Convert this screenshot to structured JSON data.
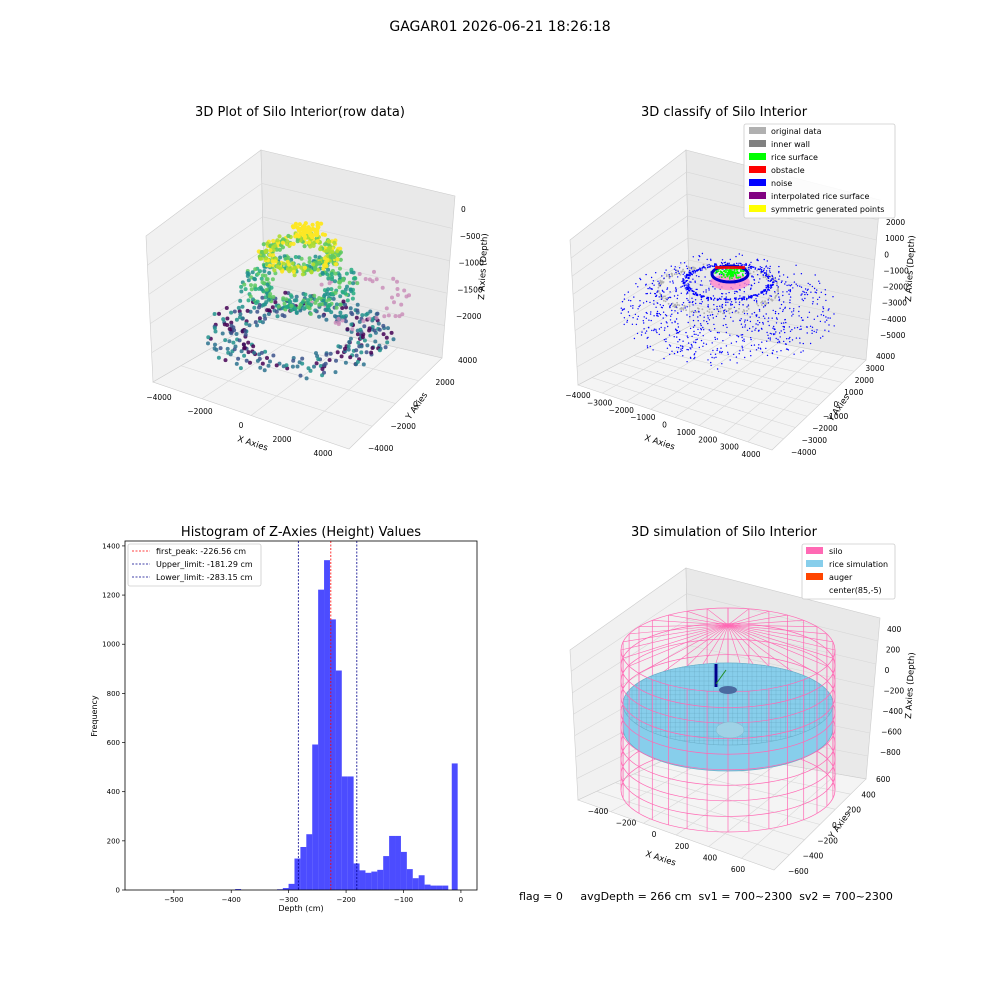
{
  "figure": {
    "suptitle": "GAGAR01 2026-06-21 18:26:18",
    "status_line": "flag = 0     avgDepth = 266 cm  sv1 = 700~2300  sv2 = 700~2300"
  },
  "colors": {
    "hist_bar": "#0000ff",
    "first_peak": "#ff0000",
    "limit_line": "#00008b",
    "silo": "#ff69b4",
    "rice": "#87ceeb",
    "auger": "#ff4500",
    "noise": "#0000ff",
    "rice_surface": "#00ff00",
    "original": "#b0b0b0",
    "inner_wall": "#808080",
    "obstacle": "#ff0000",
    "interpolated": "#800080",
    "symmetric": "#ffff00"
  },
  "chart_data": [
    {
      "type": "scatter",
      "subtype": "3d",
      "title": "3D Plot of Silo Interior(row data)",
      "xlabel": "X Axies",
      "ylabel": "Y Axies",
      "zlabel": "Z Axies (Depth)",
      "x_ticks": [
        "−4000",
        "−2000",
        "0",
        "2000",
        "4000"
      ],
      "y_ticks": [
        "−4000",
        "−2000",
        "0",
        "2000",
        "4000"
      ],
      "z_ticks": [
        "0",
        "−500",
        "−1000",
        "−1500",
        "−2000"
      ],
      "xlim": [
        -4500,
        4500
      ],
      "ylim": [
        -4500,
        4500
      ],
      "zlim": [
        -2400,
        100
      ],
      "colormap": "viridis",
      "grid": true
    },
    {
      "type": "scatter",
      "subtype": "3d",
      "title": "3D classify of Silo Interior",
      "xlabel": "X Axies",
      "ylabel": "Y Axies",
      "zlabel": "Z Axies (Depth)",
      "x_ticks": [
        "−4000",
        "−3000",
        "−2000",
        "−1000",
        "0",
        "1000",
        "2000",
        "3000",
        "4000"
      ],
      "y_ticks": [
        "−4000",
        "−3000",
        "−2000",
        "−1000",
        "0",
        "1000",
        "2000",
        "3000",
        "4000"
      ],
      "z_ticks": [
        "2000",
        "1000",
        "0",
        "−1000",
        "−2000",
        "−3000",
        "−4000",
        "−5000"
      ],
      "xlim": [
        -4000,
        4000
      ],
      "ylim": [
        -4000,
        4000
      ],
      "zlim": [
        -5500,
        2500
      ],
      "legend": {
        "placement": "top-right",
        "entries": [
          {
            "label": "original data",
            "color": "#b0b0b0"
          },
          {
            "label": "inner wall",
            "color": "#808080"
          },
          {
            "label": "rice surface",
            "color": "#00ff00"
          },
          {
            "label": "obstacle",
            "color": "#ff0000"
          },
          {
            "label": "noise",
            "color": "#0000ff"
          },
          {
            "label": "interpolated rice surface",
            "color": "#800080"
          },
          {
            "label": "symmetric generated points",
            "color": "#ffff00"
          }
        ]
      },
      "grid": true
    },
    {
      "type": "bar",
      "subtype": "histogram",
      "title": "Histogram of Z-Axies (Height) Values",
      "xlabel": "Depth (cm)",
      "ylabel": "Frequency",
      "xlim": [
        -585,
        28
      ],
      "ylim": [
        0,
        1420
      ],
      "x_ticks": [
        -500,
        -400,
        -300,
        -200,
        -100,
        0
      ],
      "x_tick_labels": [
        "−500",
        "−400",
        "−300",
        "−200",
        "−100",
        "0"
      ],
      "y_ticks": [
        0,
        200,
        400,
        600,
        800,
        1000,
        1200,
        1400
      ],
      "y_tick_labels": [
        "0",
        "200",
        "400",
        "600",
        "800",
        "1000",
        "1200",
        "1400"
      ],
      "bin_width": 10.3,
      "bins": [
        {
          "x": -388,
          "value": 4
        },
        {
          "x": -315,
          "value": 3
        },
        {
          "x": -305,
          "value": 8
        },
        {
          "x": -295,
          "value": 25
        },
        {
          "x": -284.7,
          "value": 128
        },
        {
          "x": -274.4,
          "value": 175
        },
        {
          "x": -264.1,
          "value": 227
        },
        {
          "x": -253.8,
          "value": 592
        },
        {
          "x": -243.5,
          "value": 1222
        },
        {
          "x": -233.2,
          "value": 1342
        },
        {
          "x": -222.9,
          "value": 1101
        },
        {
          "x": -212.6,
          "value": 893
        },
        {
          "x": -202.3,
          "value": 462
        },
        {
          "x": -192,
          "value": 462
        },
        {
          "x": -181.7,
          "value": 108
        },
        {
          "x": -171.4,
          "value": 80
        },
        {
          "x": -161.1,
          "value": 70
        },
        {
          "x": -150.8,
          "value": 75
        },
        {
          "x": -140.5,
          "value": 82
        },
        {
          "x": -130.2,
          "value": 138
        },
        {
          "x": -119.9,
          "value": 220
        },
        {
          "x": -109.6,
          "value": 220
        },
        {
          "x": -99.3,
          "value": 155
        },
        {
          "x": -89,
          "value": 85
        },
        {
          "x": -78.7,
          "value": 48
        },
        {
          "x": -68.4,
          "value": 60
        },
        {
          "x": -58.1,
          "value": 22
        },
        {
          "x": -47.8,
          "value": 18
        },
        {
          "x": -37.5,
          "value": 18
        },
        {
          "x": -27.2,
          "value": 18
        },
        {
          "x": -10.8,
          "value": 515
        }
      ],
      "lines": [
        {
          "label": "first_peak: -226.56 cm",
          "x": -226.56,
          "color": "#ff0000"
        },
        {
          "label": "Upper_limit: -181.29 cm",
          "x": -181.29,
          "color": "#00008b"
        },
        {
          "label": "Lower_limit: -283.15 cm",
          "x": -283.15,
          "color": "#00008b"
        }
      ],
      "legend": {
        "placement": "top-left"
      }
    },
    {
      "type": "scatter",
      "subtype": "3d-surface",
      "title": "3D simulation of Silo Interior",
      "xlabel": "X Axies",
      "ylabel": "Y Axies",
      "zlabel": "Z Axies (Depth)",
      "x_ticks": [
        "−400",
        "−200",
        "0",
        "200",
        "400",
        "600"
      ],
      "y_ticks": [
        "−600",
        "−400",
        "−200",
        "0",
        "200",
        "400",
        "600"
      ],
      "z_ticks": [
        "400",
        "200",
        "0",
        "−200",
        "−400",
        "−600",
        "−800"
      ],
      "legend": {
        "placement": "top-right",
        "entries": [
          {
            "label": "silo",
            "color": "#ff69b4"
          },
          {
            "label": "rice simulation",
            "color": "#87ceeb"
          },
          {
            "label": "auger",
            "color": "#ff4500"
          },
          {
            "label": "center(85,-5)",
            "color": "#ffffff"
          }
        ]
      },
      "grid": true
    }
  ]
}
